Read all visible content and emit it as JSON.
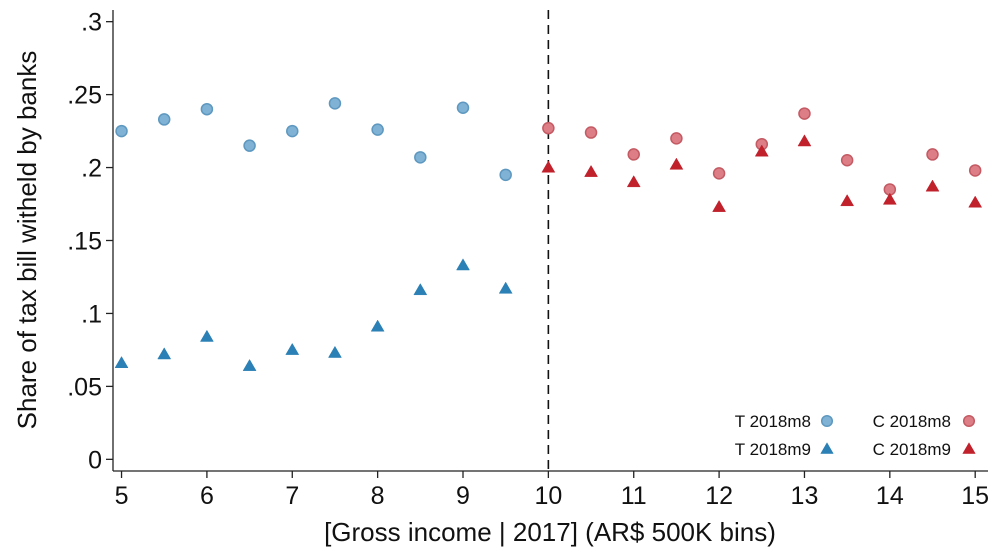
{
  "chart_data": {
    "type": "scatter",
    "xlabel": "[Gross income | 2017] (AR$ 500K bins)",
    "ylabel": "Share of tax bill witheld by banks",
    "xlim": [
      4.9,
      15.15
    ],
    "ylim": [
      -0.008,
      0.308
    ],
    "x_ticks": [
      5,
      6,
      7,
      8,
      9,
      10,
      11,
      12,
      13,
      14,
      15
    ],
    "x_tick_labels": [
      "5",
      "6",
      "7",
      "8",
      "9",
      "10",
      "11",
      "12",
      "13",
      "14",
      "15"
    ],
    "y_ticks": [
      0,
      0.05,
      0.1,
      0.15,
      0.2,
      0.25,
      0.3
    ],
    "y_tick_labels": [
      "0",
      ".05",
      ".1",
      ".15",
      ".2",
      ".25",
      ".3"
    ],
    "cutoff_line": {
      "x": 10,
      "style": "dashed"
    },
    "legend_position": "bottom-right",
    "grid": false,
    "series": [
      {
        "name": "T 2018m8",
        "marker": "circle",
        "color": "#7fb2d4",
        "stroke": "#5e98c0",
        "x": [
          5,
          5.5,
          6,
          6.5,
          7,
          7.5,
          8,
          8.5,
          9,
          9.5
        ],
        "y": [
          0.225,
          0.233,
          0.24,
          0.215,
          0.225,
          0.244,
          0.226,
          0.207,
          0.241,
          0.195
        ]
      },
      {
        "name": "T 2018m9",
        "marker": "triangle",
        "color": "#2b80b5",
        "stroke": "#2b80b5",
        "x": [
          5,
          5.5,
          6,
          6.5,
          7,
          7.5,
          8,
          8.5,
          9,
          9.5
        ],
        "y": [
          0.066,
          0.072,
          0.084,
          0.064,
          0.075,
          0.073,
          0.091,
          0.116,
          0.133,
          0.117
        ]
      },
      {
        "name": "C 2018m8",
        "marker": "circle",
        "color": "#dd7e86",
        "stroke": "#c45a63",
        "x": [
          10,
          10.5,
          11,
          11.5,
          12,
          12.5,
          13,
          13.5,
          14,
          14.5,
          15
        ],
        "y": [
          0.227,
          0.224,
          0.209,
          0.22,
          0.196,
          0.216,
          0.237,
          0.205,
          0.185,
          0.209,
          0.198
        ]
      },
      {
        "name": "C 2018m9",
        "marker": "triangle",
        "color": "#c0212b",
        "stroke": "#c0212b",
        "x": [
          10,
          10.5,
          11,
          11.5,
          12,
          12.5,
          13,
          13.5,
          14,
          14.5,
          15
        ],
        "y": [
          0.2,
          0.197,
          0.19,
          0.202,
          0.173,
          0.211,
          0.218,
          0.177,
          0.178,
          0.187,
          0.176
        ]
      }
    ]
  }
}
